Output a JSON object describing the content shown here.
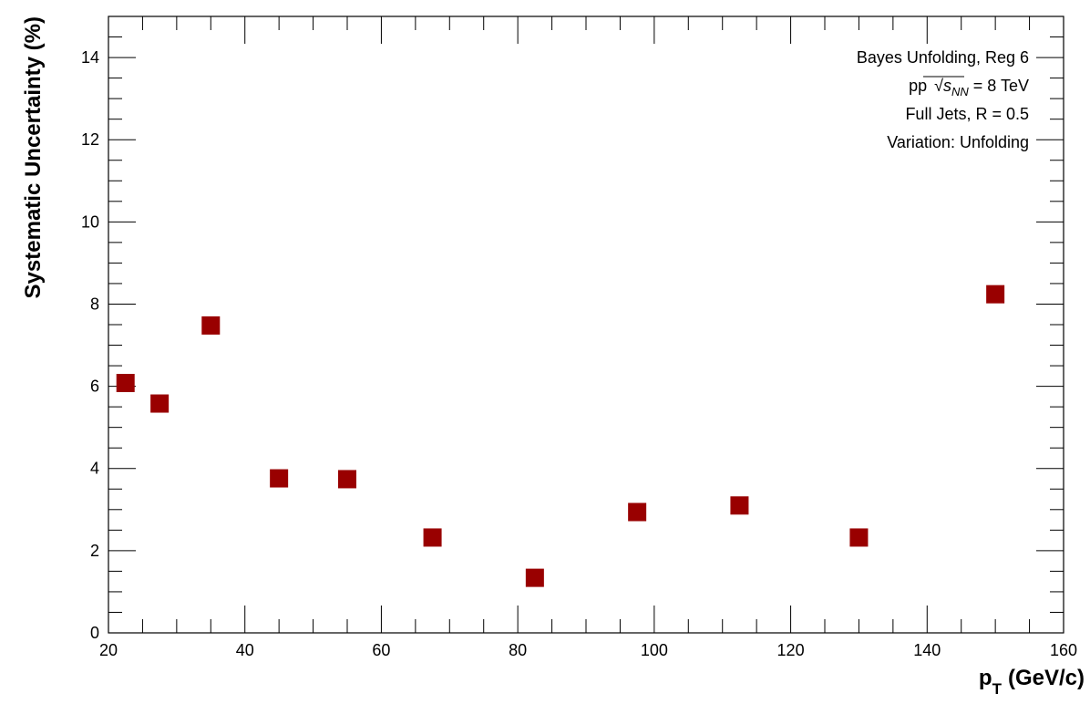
{
  "chart_data": {
    "type": "scatter",
    "xlabel": "p",
    "xlabel_sub": "T",
    "xlabel_unit": "(GeV/c)",
    "ylabel": "Systematic Uncertainty (%)",
    "xlim": [
      20,
      160
    ],
    "ylim": [
      0,
      15
    ],
    "x_ticks": [
      20,
      40,
      60,
      80,
      100,
      120,
      140,
      160
    ],
    "y_ticks": [
      0,
      2,
      4,
      6,
      8,
      10,
      12,
      14
    ],
    "grid": false,
    "legend_position": "top-right",
    "legend": {
      "line1": "Bayes Unfolding, Reg 6",
      "line2_prefix": "pp",
      "line2_s": "s",
      "line2_sub": "NN",
      "line2_suffix": "= 8 TeV",
      "line3": "Full Jets, R = 0.5",
      "line4": "Variation: Unfolding"
    },
    "marker_color": "#990000",
    "marker_shape": "square",
    "series": [
      {
        "x": [
          22.5,
          27.5,
          35,
          45,
          55,
          67.5,
          82.5,
          97.5,
          112.5,
          130,
          150
        ],
        "y": [
          6.08,
          5.58,
          7.48,
          3.76,
          3.74,
          2.32,
          1.34,
          2.94,
          3.1,
          2.32,
          8.24
        ]
      }
    ]
  }
}
